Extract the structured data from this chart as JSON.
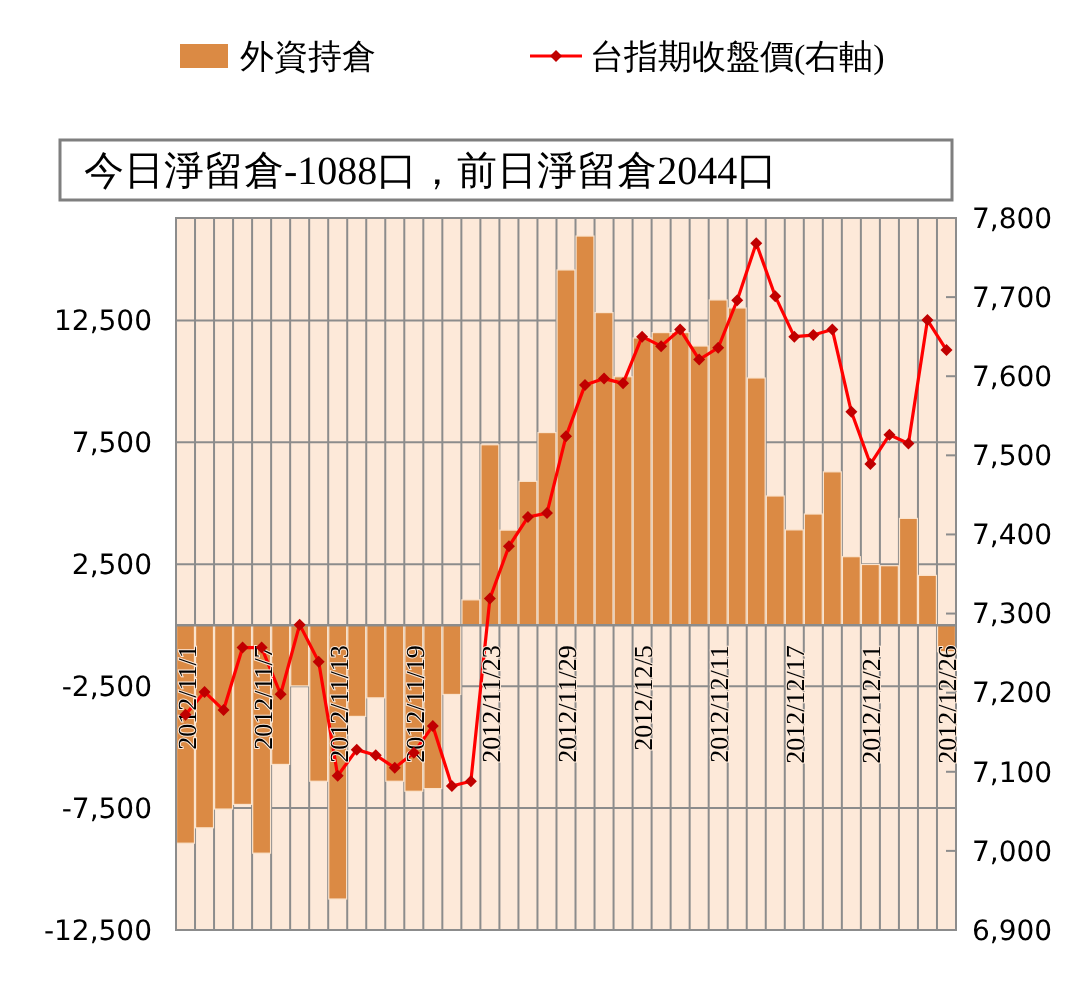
{
  "chart_data": {
    "type": "bar",
    "categories": [
      "2012/11/1",
      null,
      null,
      null,
      "2012/11/7",
      null,
      null,
      null,
      "2012/11/13",
      null,
      null,
      null,
      "2012/11/19",
      null,
      null,
      null,
      "2012/11/23",
      null,
      null,
      null,
      "2012/11/29",
      null,
      null,
      null,
      "2012/12/5",
      null,
      null,
      null,
      "2012/12/11",
      null,
      null,
      null,
      "2012/12/17",
      null,
      null,
      null,
      "2012/12/21",
      null,
      null,
      null,
      "2012/12/26"
    ],
    "series": [
      {
        "name": "外資持倉",
        "color": "#db8a44",
        "values": [
          -8940,
          -8310,
          -7540,
          -7350,
          -9350,
          -5710,
          -2490,
          -6400,
          -11230,
          -3740,
          -2980,
          -6400,
          -6810,
          -6700,
          -2840,
          1040,
          7400,
          3900,
          5900,
          7900,
          14570,
          15960,
          12820,
          10190,
          11780,
          12000,
          12000,
          11450,
          13340,
          13010,
          10140,
          5300,
          3910,
          4560,
          6290,
          2810,
          2490,
          2440,
          4380,
          2044,
          -1088
        ]
      },
      {
        "name": "台指期收盤價(右軸)",
        "type": "line",
        "axis": "y2",
        "color": "#ff0000",
        "values": [
          7172,
          7201,
          7178,
          7257,
          7257,
          7198,
          7286,
          7239,
          7095,
          7128,
          7121,
          7105,
          7124,
          7158,
          7082,
          7088,
          7319,
          7385,
          7422,
          7427,
          7524,
          7589,
          7597,
          7591,
          7650,
          7638,
          7659,
          7621,
          7636,
          7696,
          7768,
          7701,
          7650,
          7652,
          7659,
          7555,
          7489,
          7526,
          7515,
          7671,
          7633
        ]
      }
    ],
    "ylim": [
      -12500,
      16700
    ],
    "yticks": [
      {
        "value": 12500,
        "label": "12,500"
      },
      {
        "value": 7500,
        "label": "7,500"
      },
      {
        "value": 2500,
        "label": "2,500"
      },
      {
        "value": -2500,
        "label": "-2,500"
      },
      {
        "value": -7500,
        "label": "-7,500"
      },
      {
        "value": -12500,
        "label": "-12,500"
      }
    ],
    "y2lim": [
      6900,
      7800
    ],
    "y2ticks": [
      {
        "value": 7800,
        "label": "7,800"
      },
      {
        "value": 7700,
        "label": "7,700"
      },
      {
        "value": 7600,
        "label": "7,600"
      },
      {
        "value": 7500,
        "label": "7,500"
      },
      {
        "value": 7400,
        "label": "7,400"
      },
      {
        "value": 7300,
        "label": "7,300"
      },
      {
        "value": 7200,
        "label": "7,200"
      },
      {
        "value": 7100,
        "label": "7,100"
      },
      {
        "value": 7000,
        "label": "7,000"
      },
      {
        "value": 6900,
        "label": "6,900"
      }
    ],
    "annotations": [
      "今日淨留倉-1088口，前日淨留倉2044口"
    ],
    "grid": true,
    "legend": "top",
    "marker": "diamond"
  }
}
